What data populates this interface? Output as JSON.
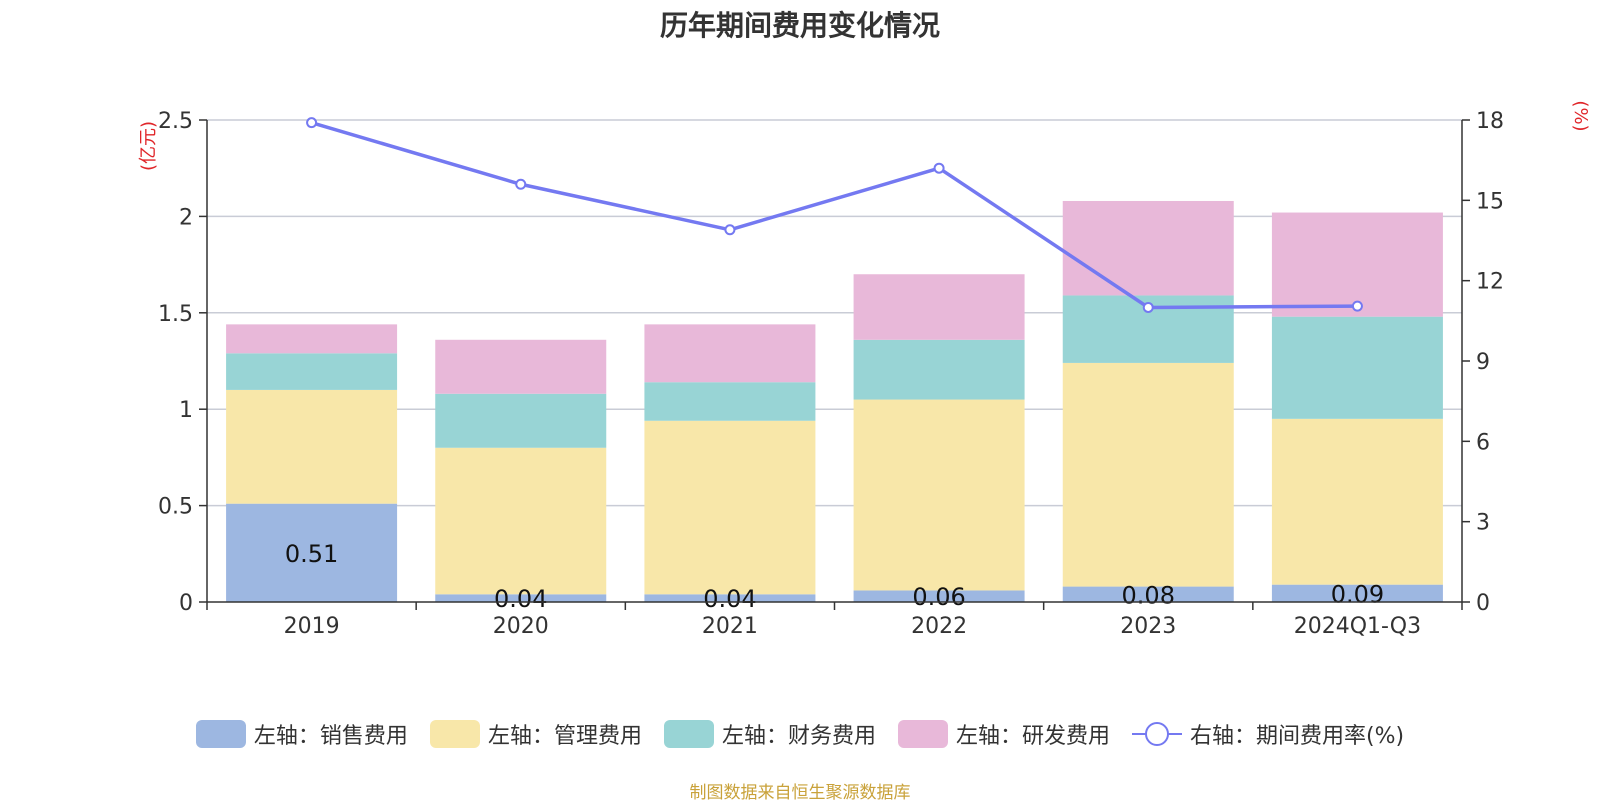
{
  "chart_data": {
    "type": "bar",
    "stacked": true,
    "title": "历年期间费用变化情况",
    "categories": [
      "2019",
      "2020",
      "2021",
      "2022",
      "2023",
      "2024Q1-Q3"
    ],
    "left_axis": {
      "unit_label": "(亿元)",
      "ylim": [
        0,
        2.5
      ],
      "ticks": [
        "0",
        "0.5",
        "1",
        "1.5",
        "2",
        "2.5"
      ]
    },
    "right_axis": {
      "unit_label": "(%)",
      "ylim": [
        0,
        18
      ],
      "ticks": [
        "0",
        "3",
        "6",
        "9",
        "12",
        "15",
        "18"
      ]
    },
    "series": [
      {
        "name": "左轴：销售费用",
        "axis": "left",
        "color": "#9db7e1",
        "values": [
          0.51,
          0.04,
          0.04,
          0.06,
          0.08,
          0.09
        ],
        "data_labels": [
          "0.51",
          "0.04",
          "0.04",
          "0.06",
          "0.08",
          "0.09"
        ]
      },
      {
        "name": "左轴：管理费用",
        "axis": "left",
        "color": "#f8e7a9",
        "values": [
          0.59,
          0.76,
          0.9,
          0.99,
          1.16,
          0.86
        ]
      },
      {
        "name": "左轴：财务费用",
        "axis": "left",
        "color": "#98d4d5",
        "values": [
          0.19,
          0.28,
          0.2,
          0.31,
          0.35,
          0.53
        ]
      },
      {
        "name": "左轴：研发费用",
        "axis": "left",
        "color": "#e8b8d9",
        "values": [
          0.15,
          0.28,
          0.3,
          0.34,
          0.49,
          0.54
        ]
      },
      {
        "name": "右轴：期间费用率(%)",
        "axis": "right",
        "type": "line",
        "color": "#7479f1",
        "values": [
          17.9,
          15.6,
          13.9,
          16.2,
          11.0,
          11.05
        ]
      }
    ],
    "grid": true,
    "legend_position": "bottom"
  },
  "source_note": "制图数据来自恒生聚源数据库"
}
